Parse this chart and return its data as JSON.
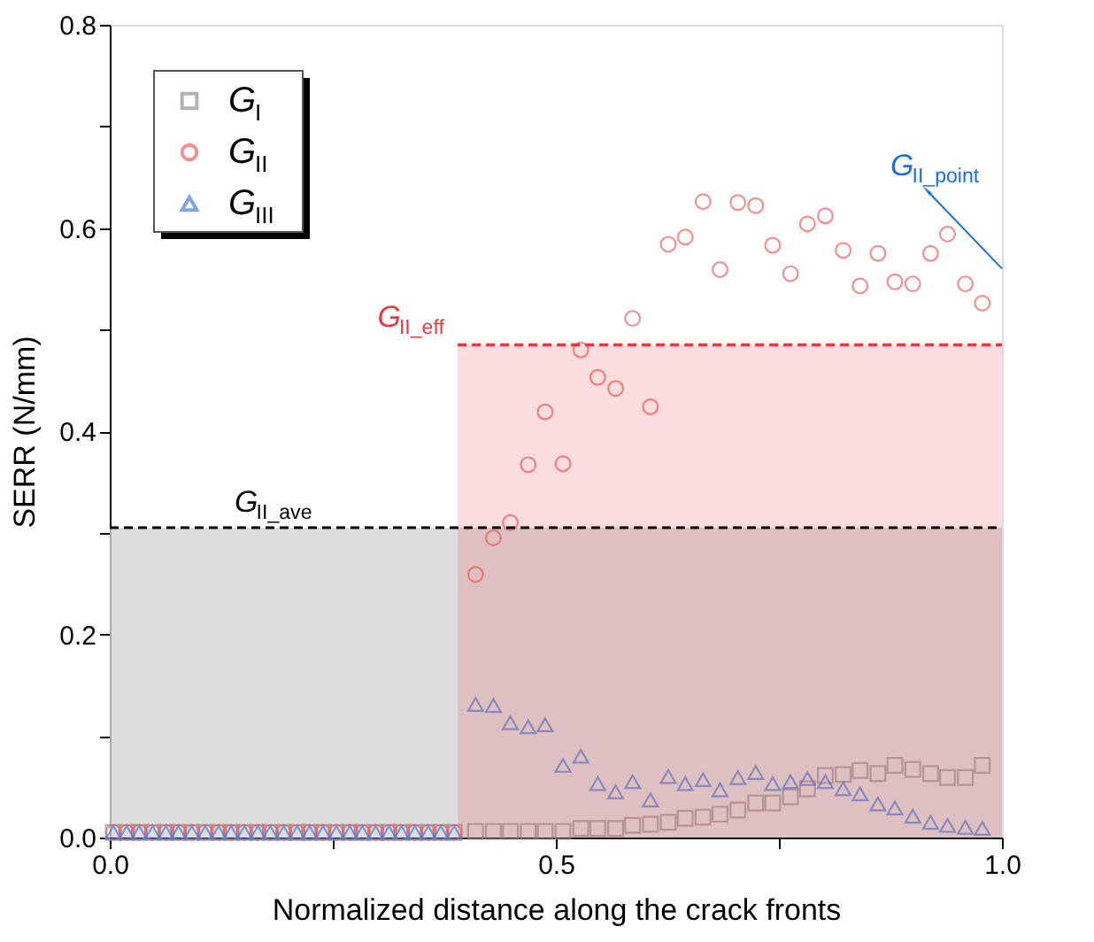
{
  "chart_data": {
    "type": "scatter",
    "xlabel": "Normalized distance along the crack fronts",
    "ylabel": "SERR (N/mm)",
    "x": [
      0.004,
      0.019,
      0.033,
      0.048,
      0.063,
      0.077,
      0.092,
      0.107,
      0.122,
      0.136,
      0.151,
      0.166,
      0.18,
      0.195,
      0.21,
      0.224,
      0.239,
      0.254,
      0.269,
      0.283,
      0.298,
      0.313,
      0.327,
      0.342,
      0.357,
      0.371,
      0.386,
      0.41,
      0.43,
      0.449,
      0.469,
      0.488,
      0.508,
      0.528,
      0.547,
      0.567,
      0.586,
      0.606,
      0.626,
      0.645,
      0.665,
      0.684,
      0.704,
      0.724,
      0.743,
      0.763,
      0.782,
      0.802,
      0.822,
      0.841,
      0.861,
      0.88,
      0.9,
      0.92,
      0.939,
      0.959,
      0.978
    ],
    "series": [
      {
        "name": "G$_{I}$",
        "color": "#9a9090",
        "marker": "square",
        "values": [
          0.005,
          0.005,
          0.005,
          0.005,
          0.005,
          0.005,
          0.005,
          0.005,
          0.005,
          0.005,
          0.005,
          0.005,
          0.005,
          0.005,
          0.005,
          0.005,
          0.005,
          0.005,
          0.005,
          0.005,
          0.005,
          0.005,
          0.005,
          0.005,
          0.005,
          0.005,
          0.005,
          0.006,
          0.006,
          0.006,
          0.006,
          0.006,
          0.006,
          0.009,
          0.009,
          0.009,
          0.012,
          0.013,
          0.015,
          0.019,
          0.02,
          0.023,
          0.027,
          0.034,
          0.034,
          0.04,
          0.048,
          0.061,
          0.062,
          0.066,
          0.063,
          0.071,
          0.067,
          0.063,
          0.059,
          0.059,
          0.071
        ]
      },
      {
        "name": "G$_{II}$",
        "color": "#f06060",
        "marker": "circle",
        "values": [
          0.005,
          0.005,
          0.005,
          0.005,
          0.005,
          0.005,
          0.005,
          0.005,
          0.005,
          0.005,
          0.005,
          0.005,
          0.005,
          0.005,
          0.005,
          0.005,
          0.005,
          0.005,
          0.005,
          0.005,
          0.005,
          0.005,
          0.005,
          0.005,
          0.005,
          0.005,
          0.005,
          0.259,
          0.295,
          0.31,
          0.367,
          0.419,
          0.368,
          0.48,
          0.453,
          0.442,
          0.511,
          0.424,
          0.584,
          0.591,
          0.626,
          0.559,
          0.625,
          0.622,
          0.583,
          0.555,
          0.604,
          0.612,
          0.578,
          0.543,
          0.575,
          0.547,
          0.545,
          0.575,
          0.594,
          0.545,
          0.526
        ]
      },
      {
        "name": "G$_{III}$",
        "color": "#4a7fd8",
        "marker": "triangle",
        "values": [
          0.005,
          0.005,
          0.005,
          0.005,
          0.005,
          0.005,
          0.005,
          0.005,
          0.005,
          0.005,
          0.005,
          0.005,
          0.005,
          0.005,
          0.005,
          0.005,
          0.005,
          0.005,
          0.005,
          0.005,
          0.005,
          0.005,
          0.005,
          0.005,
          0.005,
          0.005,
          0.005,
          0.131,
          0.13,
          0.113,
          0.109,
          0.111,
          0.071,
          0.08,
          0.053,
          0.045,
          0.055,
          0.037,
          0.06,
          0.053,
          0.057,
          0.047,
          0.059,
          0.064,
          0.053,
          0.055,
          0.058,
          0.055,
          0.048,
          0.043,
          0.033,
          0.029,
          0.021,
          0.015,
          0.012,
          0.01,
          0.009
        ]
      },
      {
        "type": "area",
        "color": "#e8383d",
        "line_style": "dashed",
        "x": [
          0.39,
          1.0
        ],
        "values": [
          0.485,
          0.485
        ]
      }
    ],
    "xlim": [
      0,
      1
    ],
    "xticks": [
      {
        "value": 0,
        "label": "0.0"
      },
      {
        "value": 0.25,
        "label": null
      },
      {
        "value": 0.5,
        "label": "0.5"
      },
      {
        "value": 0.75,
        "label": null
      },
      {
        "value": 1,
        "label": "1.0"
      }
    ],
    "ylim": [
      0,
      0.8
    ],
    "yticks": [
      {
        "value": 0,
        "label": "0.0"
      },
      {
        "value": 0.1,
        "label": null
      },
      {
        "value": 0.2,
        "label": "0.2"
      },
      {
        "value": 0.3,
        "label": null
      },
      {
        "value": 0.4,
        "label": "0.4"
      },
      {
        "value": 0.5,
        "label": null
      },
      {
        "value": 0.6,
        "label": "0.6"
      },
      {
        "value": 0.7,
        "label": null
      },
      {
        "value": 0.8,
        "label": "0.8"
      }
    ],
    "bands": [
      {
        "axis": "y",
        "from": 0,
        "to": 0.305,
        "color": "#d4d4d4"
      }
    ],
    "ref_lines": [
      {
        "axis": "y",
        "value": 0.305,
        "label": "G$_{II_ave}$",
        "color": "#000000",
        "line_style": "dashed"
      }
    ],
    "annotations": [
      {
        "text": "G$_{II_eff}$",
        "x": 0.39,
        "y": 0.485
      },
      "G$_{II_point}$"
    ],
    "legend": "top left",
    "grid": false
  }
}
